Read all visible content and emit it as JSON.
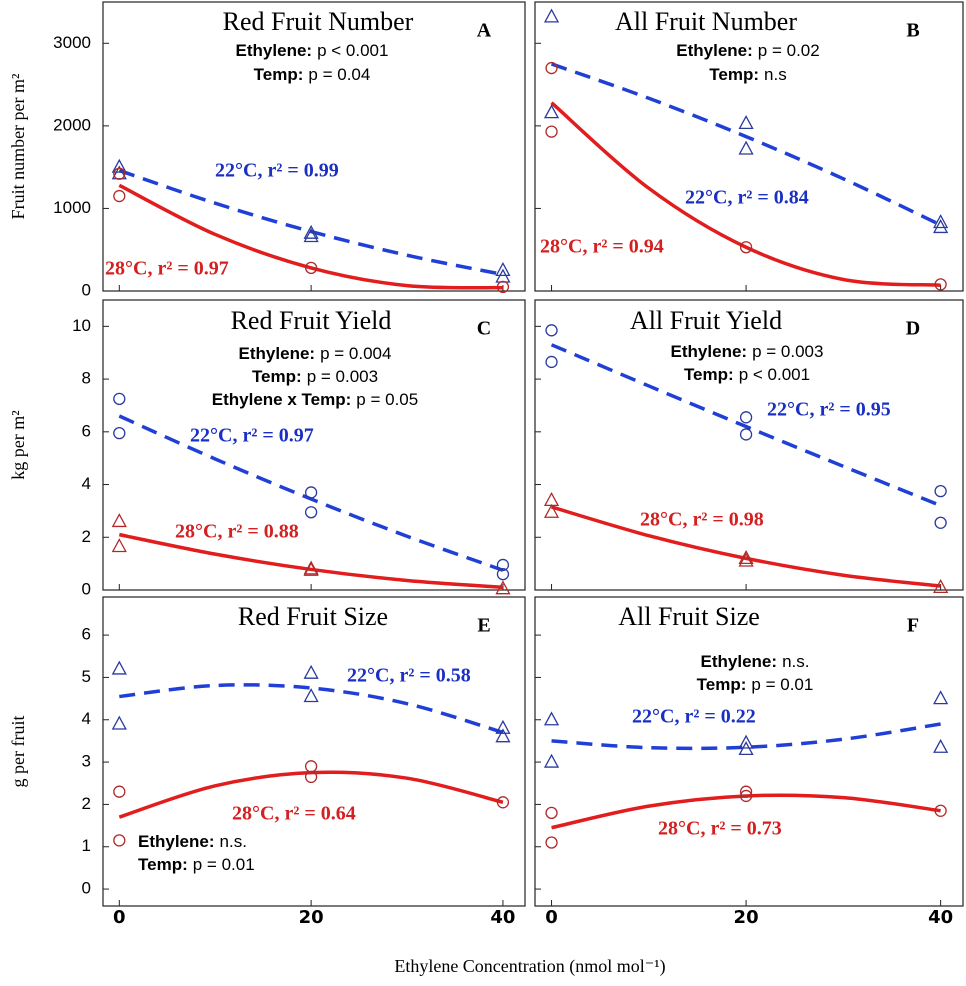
{
  "xlabel": "Ethylene Concentration (nmol mol⁻¹)",
  "chart_data": [
    {
      "type": "scatter",
      "title": "Red Fruit Number",
      "panel_label": "A",
      "ylabel": "Fruit number per m²",
      "stats": [
        {
          "name": "Ethylene:",
          "text": "p < 0.001"
        },
        {
          "name": "Temp:",
          "text": "p = 0.04"
        }
      ],
      "xlim": [
        -1.7,
        42.3
      ],
      "xticks": [
        0,
        20,
        40
      ],
      "ylim": [
        0,
        3500
      ],
      "yticks": [
        0,
        1000,
        2000,
        3000
      ],
      "series": [
        {
          "marker": "triangle",
          "color": "#2a3a9e",
          "x": [
            0,
            0,
            20,
            20,
            40,
            40
          ],
          "values": [
            1500,
            1420,
            700,
            660,
            250,
            170
          ]
        },
        {
          "marker": "circle",
          "color": "#b02a2a",
          "x": [
            0,
            0,
            20,
            40
          ],
          "values": [
            1420,
            1150,
            280,
            50
          ]
        }
      ],
      "fits": [
        {
          "color": "#1f3fd6",
          "dash": true,
          "x": [
            0,
            10,
            20,
            30,
            40
          ],
          "values": [
            1460,
            1063,
            720,
            433,
            200
          ]
        },
        {
          "color": "#e11d1d",
          "dash": false,
          "x": [
            0,
            10,
            20,
            30,
            40
          ],
          "values": [
            1280,
            685,
            280,
            65,
            40
          ]
        }
      ],
      "annotations": [
        {
          "text": "22°C, r² = 0.99",
          "color": "#1a2fc4"
        },
        {
          "text": "28°C, r² = 0.97",
          "color": "#d42020"
        }
      ]
    },
    {
      "type": "scatter",
      "title": "All Fruit Number",
      "panel_label": "B",
      "stats": [
        {
          "name": "Ethylene:",
          "text": "p = 0.02"
        },
        {
          "name": "Temp:",
          "text": "n.s"
        }
      ],
      "xlim": [
        -1.7,
        42.3
      ],
      "xticks": [
        0,
        20,
        40
      ],
      "ylim": [
        0,
        3500
      ],
      "yticks": [
        0,
        1000,
        2000,
        3000
      ],
      "series": [
        {
          "marker": "triangle",
          "color": "#2a3a9e",
          "x": [
            0,
            0,
            20,
            20,
            40,
            40
          ],
          "values": [
            3320,
            2160,
            2030,
            1720,
            830,
            770
          ]
        },
        {
          "marker": "circle",
          "color": "#b02a2a",
          "x": [
            0,
            0,
            20,
            40
          ],
          "values": [
            2700,
            1930,
            530,
            80
          ]
        }
      ],
      "fits": [
        {
          "color": "#1f3fd6",
          "dash": true,
          "x": [
            0,
            10,
            20,
            30,
            40
          ],
          "values": [
            2750,
            2334,
            1870,
            1359,
            800
          ]
        },
        {
          "color": "#e11d1d",
          "dash": false,
          "x": [
            0,
            10,
            20,
            30,
            40
          ],
          "values": [
            2280,
            1244,
            530,
            139,
            70
          ]
        }
      ],
      "annotations": [
        {
          "text": "22°C, r² = 0.84",
          "color": "#1a2fc4"
        },
        {
          "text": "28°C, r² = 0.94",
          "color": "#d42020"
        }
      ]
    },
    {
      "type": "scatter",
      "title": "Red Fruit Yield",
      "panel_label": "C",
      "ylabel": "kg per m²",
      "stats": [
        {
          "name": "Ethylene:",
          "text": "p = 0.004"
        },
        {
          "name": "Temp:",
          "text": "p = 0.003"
        },
        {
          "name": "Ethylene x Temp:",
          "text": "p = 0.05"
        }
      ],
      "xlim": [
        -1.7,
        42.3
      ],
      "xticks": [
        0,
        20,
        40
      ],
      "ylim": [
        0,
        11
      ],
      "yticks": [
        0,
        2,
        4,
        6,
        8,
        10
      ],
      "series": [
        {
          "marker": "circle",
          "color": "#2a3a9e",
          "x": [
            0,
            0,
            20,
            20,
            40,
            40
          ],
          "values": [
            7.25,
            5.95,
            3.7,
            2.95,
            0.95,
            0.6
          ]
        },
        {
          "marker": "triangle",
          "color": "#b02a2a",
          "x": [
            0,
            0,
            20,
            20,
            40
          ],
          "values": [
            2.6,
            1.65,
            0.8,
            0.75,
            0.05
          ]
        }
      ],
      "fits": [
        {
          "color": "#1f3fd6",
          "dash": true,
          "x": [
            0,
            10,
            20,
            30,
            40
          ],
          "values": [
            6.6,
            4.97,
            3.45,
            2.04,
            0.75
          ]
        },
        {
          "color": "#e11d1d",
          "dash": false,
          "x": [
            0,
            10,
            20,
            30,
            40
          ],
          "values": [
            2.1,
            1.36,
            0.78,
            0.36,
            0.1
          ]
        }
      ],
      "annotations": [
        {
          "text": "22°C, r² = 0.97",
          "color": "#1a2fc4"
        },
        {
          "text": "28°C, r² = 0.88",
          "color": "#d42020"
        }
      ]
    },
    {
      "type": "scatter",
      "title": "All Fruit Yield",
      "panel_label": "D",
      "stats": [
        {
          "name": "Ethylene:",
          "text": "p = 0.003"
        },
        {
          "name": "Temp:",
          "text": "p < 0.001"
        }
      ],
      "xlim": [
        -1.7,
        42.3
      ],
      "xticks": [
        0,
        20,
        40
      ],
      "ylim": [
        0,
        11
      ],
      "yticks": [
        0,
        2,
        4,
        6,
        8,
        10
      ],
      "series": [
        {
          "marker": "circle",
          "color": "#2a3a9e",
          "x": [
            0,
            0,
            20,
            20,
            40,
            40
          ],
          "values": [
            9.85,
            8.65,
            6.55,
            5.9,
            3.75,
            2.55
          ]
        },
        {
          "marker": "triangle",
          "color": "#b02a2a",
          "x": [
            0,
            0,
            20,
            20,
            40
          ],
          "values": [
            3.4,
            2.95,
            1.2,
            1.1,
            0.1
          ]
        }
      ],
      "fits": [
        {
          "color": "#1f3fd6",
          "dash": true,
          "x": [
            0,
            10,
            20,
            30,
            40
          ],
          "values": [
            9.3,
            7.74,
            6.2,
            4.69,
            3.2
          ]
        },
        {
          "color": "#e11d1d",
          "dash": false,
          "x": [
            0,
            10,
            20,
            30,
            40
          ],
          "values": [
            3.15,
            2.06,
            1.2,
            0.56,
            0.15
          ]
        }
      ],
      "annotations": [
        {
          "text": "22°C, r² = 0.95",
          "color": "#1a2fc4"
        },
        {
          "text": "28°C,  r² = 0.98",
          "color": "#d42020"
        }
      ]
    },
    {
      "type": "scatter",
      "title": "Red Fruit Size",
      "panel_label": "E",
      "ylabel": "g per fruit",
      "stats": [
        {
          "name": "Ethylene:",
          "text": "n.s."
        },
        {
          "name": "Temp:",
          "text": "p = 0.01"
        }
      ],
      "xlim": [
        -1.7,
        42.3
      ],
      "xticks": [
        0,
        20,
        40
      ],
      "ylim": [
        -0.4,
        6.9
      ],
      "yticks": [
        0,
        1,
        2,
        3,
        4,
        5,
        6
      ],
      "series": [
        {
          "marker": "triangle",
          "color": "#2a3a9e",
          "x": [
            0,
            0,
            20,
            20,
            40,
            40
          ],
          "values": [
            5.2,
            3.9,
            5.1,
            4.55,
            3.8,
            3.6
          ]
        },
        {
          "marker": "circle",
          "color": "#b02a2a",
          "x": [
            0,
            0,
            20,
            20,
            40
          ],
          "values": [
            2.3,
            1.15,
            2.9,
            2.65,
            2.05
          ]
        }
      ],
      "fits": [
        {
          "color": "#1f3fd6",
          "dash": true,
          "x": [
            0,
            10,
            20,
            30,
            40
          ],
          "values": [
            4.55,
            4.81,
            4.75,
            4.38,
            3.7
          ]
        },
        {
          "color": "#e11d1d",
          "dash": false,
          "x": [
            0,
            10,
            20,
            30,
            40
          ],
          "values": [
            1.7,
            2.44,
            2.75,
            2.62,
            2.05
          ]
        }
      ],
      "annotations": [
        {
          "text": "22°C, r² = 0.58",
          "color": "#1a2fc4"
        },
        {
          "text": "28°C, r² = 0.64",
          "color": "#d42020"
        }
      ]
    },
    {
      "type": "scatter",
      "title": "All Fruit Size",
      "panel_label": "F",
      "stats": [
        {
          "name": "Ethylene:",
          "text": "n.s."
        },
        {
          "name": "Temp:",
          "text": "p = 0.01"
        }
      ],
      "xlim": [
        -1.7,
        42.3
      ],
      "xticks": [
        0,
        20,
        40
      ],
      "ylim": [
        -0.4,
        6.9
      ],
      "yticks": [
        0,
        1,
        2,
        3,
        4,
        5,
        6
      ],
      "series": [
        {
          "marker": "triangle",
          "color": "#2a3a9e",
          "x": [
            0,
            0,
            20,
            20,
            40,
            40
          ],
          "values": [
            4.0,
            3.0,
            3.45,
            3.3,
            4.5,
            3.35
          ]
        },
        {
          "marker": "circle",
          "color": "#b02a2a",
          "x": [
            0,
            0,
            20,
            20,
            40
          ],
          "values": [
            1.8,
            1.1,
            2.3,
            2.2,
            1.85
          ]
        }
      ],
      "fits": [
        {
          "color": "#1f3fd6",
          "dash": true,
          "x": [
            0,
            10,
            20,
            30,
            40
          ],
          "values": [
            3.5,
            3.34,
            3.35,
            3.54,
            3.9
          ]
        },
        {
          "color": "#e11d1d",
          "dash": false,
          "x": [
            0,
            10,
            20,
            30,
            40
          ],
          "values": [
            1.45,
            1.96,
            2.2,
            2.16,
            1.85
          ]
        }
      ],
      "annotations": [
        {
          "text": "22°C, r² = 0.22",
          "color": "#1a2fc4"
        },
        {
          "text": "28°C, r² = 0.73",
          "color": "#d42020"
        }
      ]
    }
  ]
}
